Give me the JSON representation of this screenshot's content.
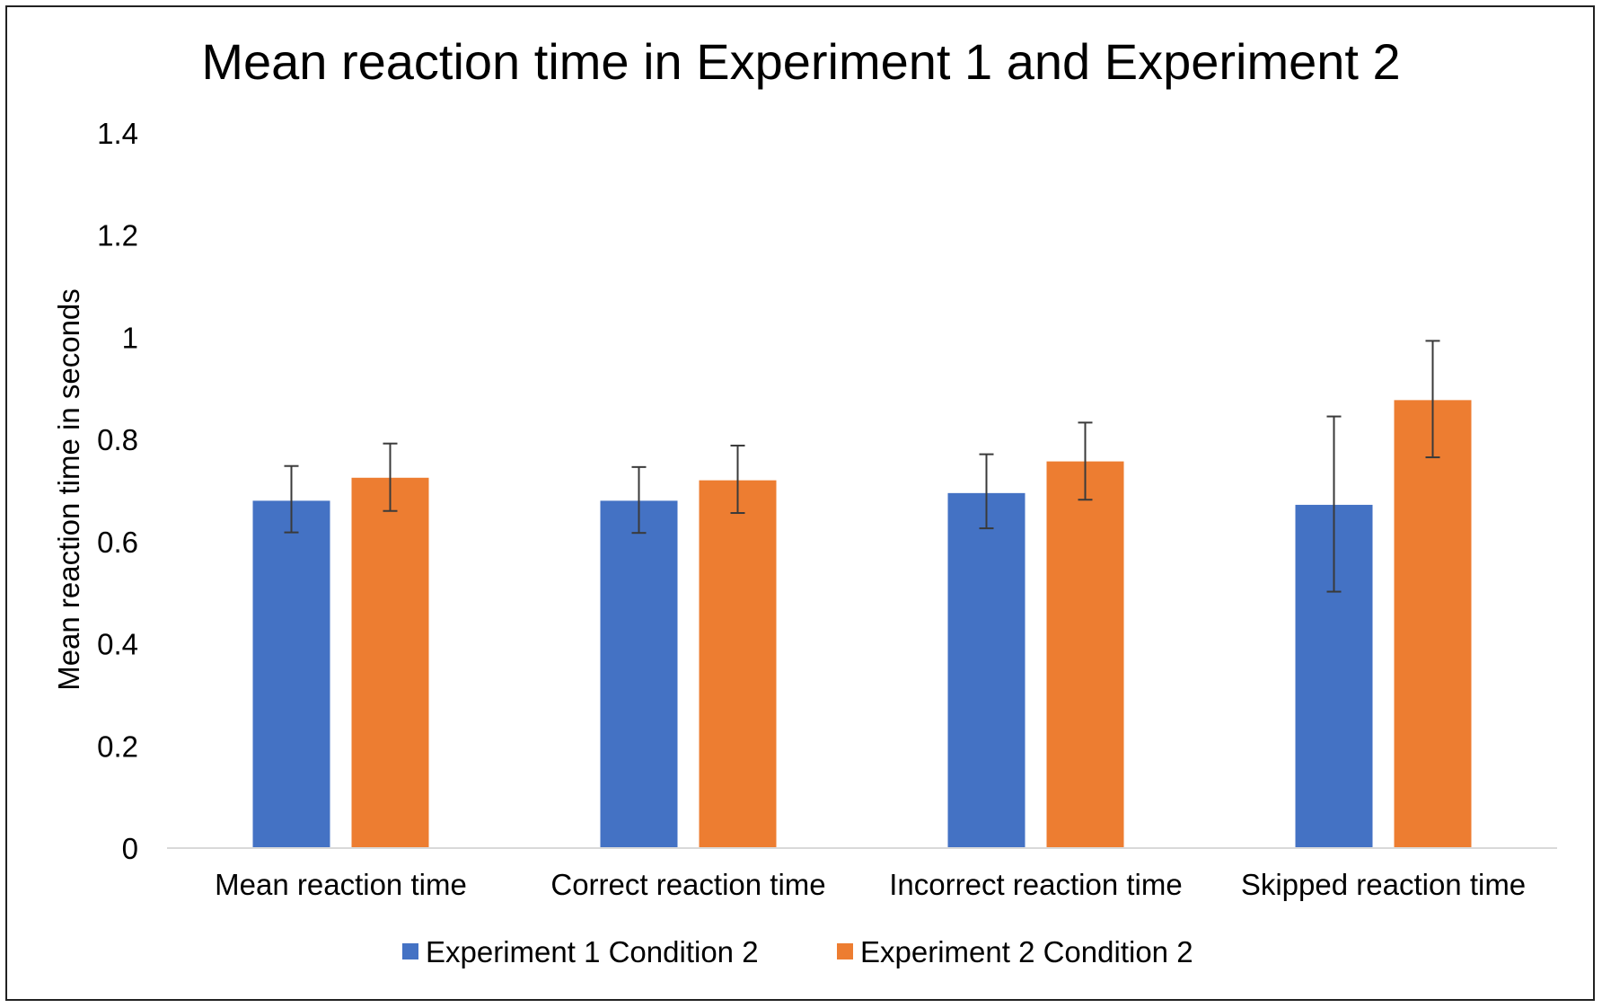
{
  "chart_data": {
    "type": "bar",
    "title": "Mean reaction time in Experiment 1 and Experiment 2",
    "xlabel": "",
    "ylabel": "Mean reaction time in seconds",
    "ylim": [
      0,
      1.4
    ],
    "yticks": [
      0,
      0.2,
      0.4,
      0.6,
      0.8,
      1,
      1.2,
      1.4
    ],
    "ytick_labels": [
      "0",
      "0.2",
      "0.4",
      "0.6",
      "0.8",
      "1",
      "1.2",
      "1.4"
    ],
    "grid": false,
    "legend_position": "bottom",
    "categories": [
      "Mean reaction time",
      "Correct reaction time",
      "Incorrect reaction time",
      "Skipped reaction time"
    ],
    "series": [
      {
        "name": "Experiment 1 Condition 2",
        "color": "#4472C4",
        "values": [
          0.68,
          0.68,
          0.695,
          0.672
        ],
        "error_low": [
          0.618,
          0.617,
          0.626,
          0.502
        ],
        "error_high": [
          0.748,
          0.746,
          0.771,
          0.845
        ]
      },
      {
        "name": "Experiment 2 Condition 2",
        "color": "#ED7D31",
        "values": [
          0.725,
          0.72,
          0.757,
          0.877
        ],
        "error_low": [
          0.66,
          0.656,
          0.682,
          0.765
        ],
        "error_high": [
          0.792,
          0.788,
          0.833,
          0.993
        ]
      }
    ]
  }
}
